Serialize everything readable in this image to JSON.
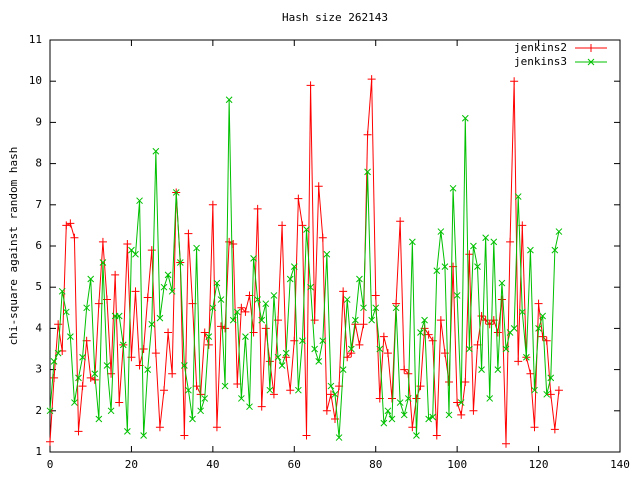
{
  "chart_data": {
    "type": "line",
    "title": "Hash size 262143",
    "y_label": "chi-square against random hash",
    "x": [
      0,
      1,
      2,
      3,
      4,
      5,
      6,
      7,
      8,
      9,
      10,
      11,
      12,
      13,
      14,
      15,
      16,
      17,
      18,
      19,
      20,
      21,
      22,
      23,
      24,
      25,
      26,
      27,
      28,
      29,
      30,
      31,
      32,
      33,
      34,
      35,
      36,
      37,
      38,
      39,
      40,
      41,
      42,
      43,
      44,
      45,
      46,
      47,
      48,
      49,
      50,
      51,
      52,
      53,
      54,
      55,
      56,
      57,
      58,
      59,
      60,
      61,
      62,
      63,
      64,
      65,
      66,
      67,
      68,
      69,
      70,
      71,
      72,
      73,
      74,
      75,
      76,
      77,
      78,
      79,
      80,
      81,
      82,
      83,
      84,
      85,
      86,
      87,
      88,
      89,
      90,
      91,
      92,
      93,
      94,
      95,
      96,
      97,
      98,
      99,
      100,
      101,
      102,
      103,
      104,
      105,
      106,
      107,
      108,
      109,
      110,
      111,
      112,
      113,
      114,
      115,
      116,
      117,
      118,
      119,
      120,
      121,
      122,
      123,
      124,
      125
    ],
    "series": [
      {
        "name": "jenkins2",
        "color": "#ff0000",
        "marker": "plus",
        "values": [
          1.25,
          2.8,
          4.1,
          3.45,
          6.5,
          6.55,
          6.2,
          1.5,
          2.6,
          3.7,
          2.8,
          2.75,
          4.6,
          6.1,
          4.7,
          2.9,
          5.3,
          2.2,
          3.6,
          6.05,
          3.3,
          4.9,
          3.1,
          3.5,
          4.75,
          5.9,
          3.4,
          1.6,
          2.5,
          3.9,
          2.9,
          7.3,
          5.6,
          1.4,
          6.3,
          4.6,
          2.6,
          2.4,
          3.9,
          3.6,
          7.0,
          1.6,
          4.05,
          4.0,
          6.1,
          6.05,
          2.65,
          4.5,
          4.4,
          4.8,
          3.9,
          6.9,
          2.1,
          4.0,
          3.2,
          2.4,
          4.2,
          6.5,
          3.3,
          2.5,
          3.7,
          7.15,
          6.5,
          1.4,
          9.9,
          4.2,
          7.45,
          6.2,
          2.0,
          2.4,
          1.8,
          2.6,
          4.9,
          3.3,
          3.4,
          4.1,
          3.6,
          4.1,
          8.7,
          10.05,
          4.8,
          2.3,
          3.8,
          3.4,
          2.3,
          4.6,
          6.6,
          3.0,
          2.9,
          1.6,
          2.3,
          2.6,
          4.0,
          3.85,
          3.7,
          1.4,
          4.2,
          3.4,
          2.7,
          5.5,
          2.2,
          1.9,
          2.7,
          5.8,
          2.0,
          3.6,
          4.3,
          4.2,
          4.1,
          4.2,
          3.9,
          4.7,
          1.2,
          6.1,
          10.0,
          3.2,
          6.5,
          3.3,
          2.9,
          1.6,
          4.6,
          3.8,
          3.7,
          2.4,
          1.55,
          2.5
        ]
      },
      {
        "name": "jenkins3",
        "color": "#00c000",
        "marker": "cross",
        "values": [
          2.0,
          3.2,
          3.4,
          4.9,
          4.4,
          3.8,
          2.2,
          2.8,
          3.3,
          4.5,
          5.2,
          2.9,
          1.8,
          5.6,
          3.1,
          2.0,
          4.3,
          4.3,
          3.6,
          1.5,
          5.9,
          5.8,
          7.1,
          1.4,
          3.0,
          4.1,
          8.3,
          4.25,
          5.0,
          5.3,
          4.9,
          7.3,
          5.6,
          3.1,
          2.5,
          1.8,
          5.95,
          2.0,
          2.3,
          3.8,
          4.5,
          5.1,
          4.7,
          2.6,
          9.55,
          4.2,
          4.4,
          2.3,
          3.8,
          2.1,
          5.7,
          4.7,
          4.2,
          4.6,
          2.5,
          4.8,
          3.3,
          3.1,
          3.4,
          5.2,
          5.5,
          2.5,
          3.7,
          6.4,
          5.0,
          3.5,
          3.2,
          3.7,
          5.8,
          2.6,
          2.4,
          1.35,
          3.0,
          4.7,
          3.5,
          4.2,
          5.2,
          4.5,
          7.8,
          4.2,
          4.5,
          3.5,
          1.7,
          2.0,
          1.8,
          4.5,
          2.2,
          1.9,
          2.3,
          6.1,
          1.4,
          3.9,
          4.2,
          1.8,
          1.85,
          5.4,
          6.35,
          5.5,
          1.9,
          7.4,
          4.8,
          2.2,
          9.1,
          3.5,
          6.0,
          5.5,
          3.0,
          6.2,
          2.3,
          6.1,
          3.0,
          5.1,
          3.5,
          3.9,
          4.0,
          7.2,
          4.4,
          3.3,
          5.9,
          2.5,
          4.0,
          4.3,
          2.4,
          2.8,
          5.9,
          6.35
        ]
      }
    ],
    "xlim": [
      0,
      140
    ],
    "xticks": [
      0,
      20,
      40,
      60,
      80,
      100,
      120,
      140
    ],
    "ylim": [
      1,
      11
    ],
    "yticks": [
      1,
      2,
      3,
      4,
      5,
      6,
      7,
      8,
      9,
      10,
      11
    ],
    "legend": "top-right"
  }
}
